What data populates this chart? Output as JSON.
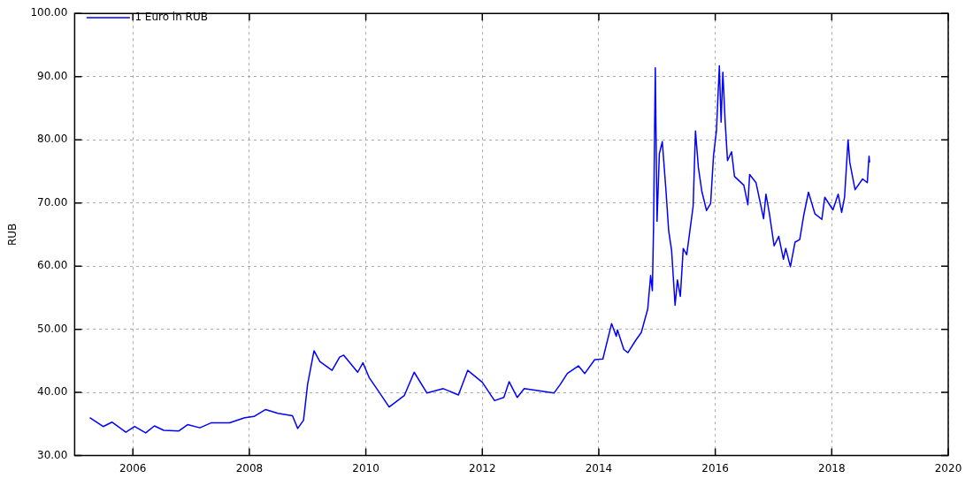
{
  "chart_data": {
    "type": "line",
    "ylabel": "RUB",
    "xlim": [
      2005,
      2020
    ],
    "xticks": [
      2006,
      2008,
      2010,
      2012,
      2014,
      2016,
      2018,
      2020
    ],
    "ylim": [
      30,
      100
    ],
    "yticks": [
      {
        "value": 30,
        "label": "30.00"
      },
      {
        "value": 40,
        "label": "40.00"
      },
      {
        "value": 50,
        "label": "50.00"
      },
      {
        "value": 60,
        "label": "60.00"
      },
      {
        "value": 70,
        "label": "70.00"
      },
      {
        "value": 80,
        "label": "80.00"
      },
      {
        "value": 90,
        "label": "90.00"
      },
      {
        "value": 100,
        "label": "100.00"
      }
    ],
    "grid": true,
    "legend": "top left",
    "marker": "none",
    "line_style": "solid",
    "series": [
      {
        "name": "1 Euro in RUB",
        "color": "#0000ff",
        "x": [
          2005.26,
          2005.49,
          2005.64,
          2005.88,
          2006.03,
          2006.22,
          2006.37,
          2006.53,
          2006.79,
          2006.94,
          2007.15,
          2007.35,
          2007.66,
          2007.92,
          2008.08,
          2008.28,
          2008.49,
          2008.74,
          2008.83,
          2008.93,
          2009.0,
          2009.11,
          2009.21,
          2009.42,
          2009.55,
          2009.62,
          2009.86,
          2009.95,
          2010.06,
          2010.24,
          2010.4,
          2010.66,
          2010.83,
          2011.05,
          2011.33,
          2011.59,
          2011.75,
          2012.0,
          2012.21,
          2012.37,
          2012.46,
          2012.6,
          2012.72,
          2013.23,
          2013.34,
          2013.46,
          2013.65,
          2013.76,
          2013.93,
          2014.07,
          2014.22,
          2014.3,
          2014.32,
          2014.43,
          2014.5,
          2014.63,
          2014.73,
          2014.84,
          2014.89,
          2014.92,
          2014.94,
          2014.97,
          2015.0,
          2015.04,
          2015.09,
          2015.15,
          2015.2,
          2015.25,
          2015.31,
          2015.35,
          2015.4,
          2015.45,
          2015.51,
          2015.62,
          2015.66,
          2015.71,
          2015.77,
          2015.85,
          2015.92,
          2015.97,
          2016.02,
          2016.07,
          2016.1,
          2016.13,
          2016.17,
          2016.21,
          2016.28,
          2016.33,
          2016.49,
          2016.56,
          2016.59,
          2016.7,
          2016.83,
          2016.87,
          2016.93,
          2017.01,
          2017.09,
          2017.17,
          2017.21,
          2017.29,
          2017.37,
          2017.45,
          2017.52,
          2017.6,
          2017.71,
          2017.83,
          2017.88,
          2018.02,
          2018.11,
          2018.17,
          2018.22,
          2018.28,
          2018.31,
          2018.4,
          2018.53,
          2018.61,
          2018.64,
          2018.65
        ],
        "values": [
          36.0,
          34.6,
          35.3,
          33.7,
          34.6,
          33.6,
          34.7,
          34.0,
          33.9,
          34.9,
          34.4,
          35.2,
          35.2,
          36.0,
          36.2,
          37.3,
          36.7,
          36.3,
          34.3,
          35.6,
          41.3,
          46.6,
          44.9,
          43.5,
          45.6,
          45.9,
          43.2,
          44.7,
          42.3,
          39.9,
          37.7,
          39.5,
          43.2,
          39.9,
          40.6,
          39.6,
          43.5,
          41.6,
          38.7,
          39.2,
          41.7,
          39.2,
          40.6,
          39.9,
          41.3,
          43.0,
          44.2,
          43.0,
          45.2,
          45.3,
          50.9,
          48.9,
          49.9,
          46.8,
          46.3,
          48.2,
          49.5,
          53.2,
          58.5,
          56.1,
          66.1,
          91.4,
          67.1,
          77.8,
          79.7,
          72.4,
          65.6,
          62.5,
          53.8,
          57.8,
          55.2,
          62.8,
          61.8,
          69.5,
          81.4,
          75.6,
          71.8,
          68.8,
          69.9,
          77.5,
          81.4,
          91.7,
          82.8,
          90.7,
          82.8,
          76.7,
          78.1,
          74.2,
          72.8,
          69.7,
          74.5,
          73.2,
          67.5,
          71.4,
          68.3,
          63.2,
          64.7,
          61.1,
          62.8,
          59.9,
          63.8,
          64.2,
          68.1,
          71.7,
          68.3,
          67.4,
          70.9,
          68.9,
          71.4,
          68.5,
          70.9,
          80.0,
          76.4,
          72.1,
          73.8,
          73.2,
          77.4,
          76.4
        ]
      }
    ]
  }
}
